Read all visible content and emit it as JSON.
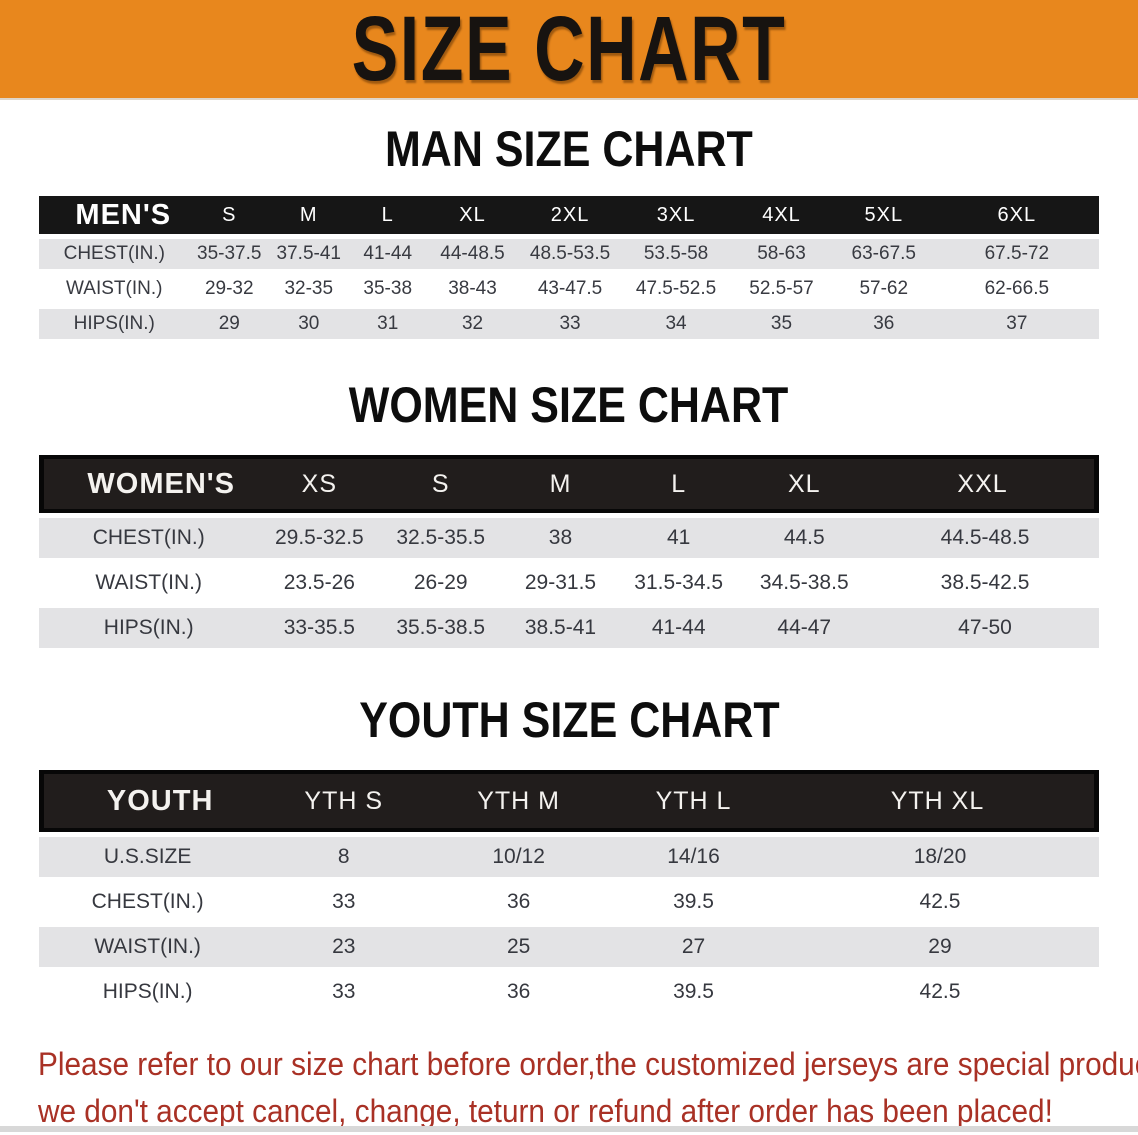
{
  "banner": {
    "title": "SIZE CHART",
    "bg_color": "#E8871D"
  },
  "sections": [
    {
      "heading": "MAN SIZE CHART",
      "table": {
        "header_label": "MEN'S",
        "columns": [
          "S",
          "M",
          "L",
          "XL",
          "2XL",
          "3XL",
          "4XL",
          "5XL",
          "6XL"
        ],
        "rows": [
          {
            "label": "CHEST(IN.)",
            "values": [
              "35-37.5",
              "37.5-41",
              "41-44",
              "44-48.5",
              "48.5-53.5",
              "53.5-58",
              "58-63",
              "63-67.5",
              "67.5-72"
            ]
          },
          {
            "label": "WAIST(IN.)",
            "values": [
              "29-32",
              "32-35",
              "35-38",
              "38-43",
              "43-47.5",
              "47.5-52.5",
              "52.5-57",
              "57-62",
              "62-66.5"
            ]
          },
          {
            "label": "HIPS(IN.)",
            "values": [
              "29",
              "30",
              "31",
              "32",
              "33",
              "34",
              "35",
              "36",
              "37"
            ]
          }
        ]
      }
    },
    {
      "heading": "WOMEN SIZE CHART",
      "table": {
        "header_label": "WOMEN'S",
        "columns": [
          "XS",
          "S",
          "M",
          "L",
          "XL",
          "XXL"
        ],
        "rows": [
          {
            "label": "CHEST(IN.)",
            "values": [
              "29.5-32.5",
              "32.5-35.5",
              "38",
              "41",
              "44.5",
              "44.5-48.5"
            ]
          },
          {
            "label": "WAIST(IN.)",
            "values": [
              "23.5-26",
              "26-29",
              "29-31.5",
              "31.5-34.5",
              "34.5-38.5",
              "38.5-42.5"
            ]
          },
          {
            "label": "HIPS(IN.)",
            "values": [
              "33-35.5",
              "35.5-38.5",
              "38.5-41",
              "41-44",
              "44-47",
              "47-50"
            ]
          }
        ]
      }
    },
    {
      "heading": "YOUTH SIZE CHART",
      "table": {
        "header_label": "YOUTH",
        "columns": [
          "YTH S",
          "YTH M",
          "YTH L",
          "YTH XL"
        ],
        "rows": [
          {
            "label": "U.S.SIZE",
            "values": [
              "8",
              "10/12",
              "14/16",
              "18/20"
            ]
          },
          {
            "label": "CHEST(IN.)",
            "values": [
              "33",
              "36",
              "39.5",
              "42.5"
            ]
          },
          {
            "label": "WAIST(IN.)",
            "values": [
              "23",
              "25",
              "27",
              "29"
            ]
          },
          {
            "label": "HIPS(IN.)",
            "values": [
              "33",
              "36",
              "39.5",
              "42.5"
            ]
          }
        ]
      }
    }
  ],
  "disclaimer": {
    "lines": [
      "Please refer to our size chart before order,the customized jerseys are special products,",
      "we don't accept cancel, change, teturn or refund after order has been placed!"
    ],
    "color": "#A93125"
  }
}
